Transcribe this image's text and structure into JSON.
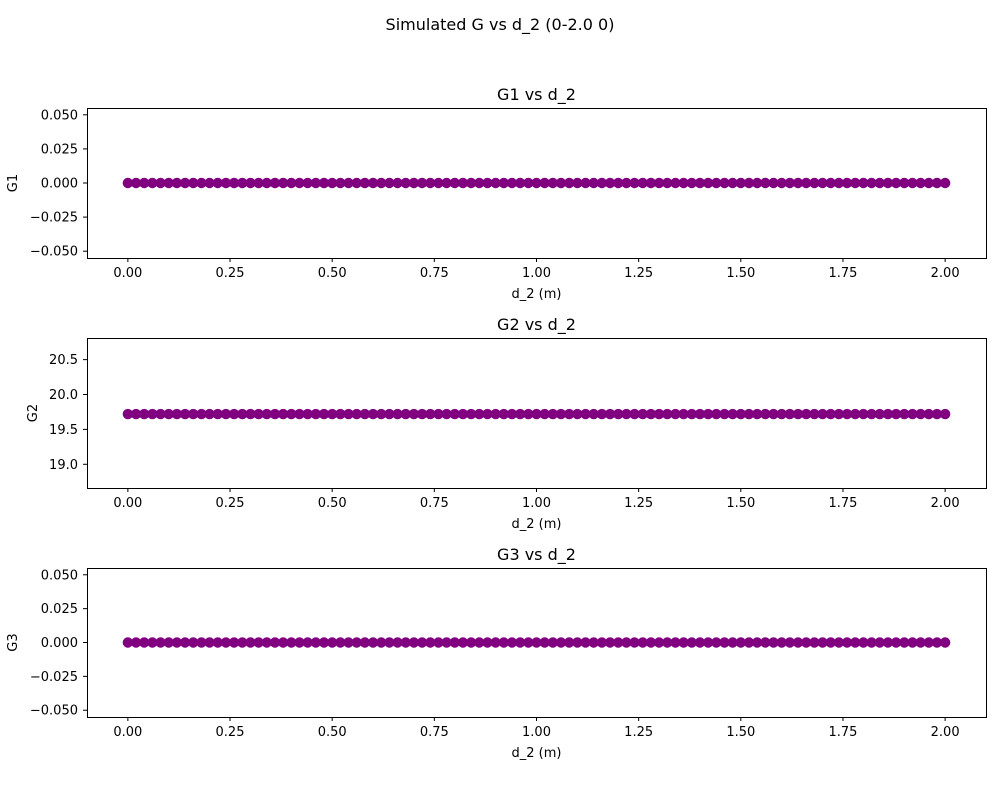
{
  "figure": {
    "title": "Simulated G vs d_2 (0-2.0 0)"
  },
  "chart_data": [
    {
      "type": "scatter",
      "title": "G1 vs d_2",
      "xlabel": "d_2 (m)",
      "ylabel": "G1",
      "xlim": [
        -0.1,
        2.1
      ],
      "ylim": [
        -0.055,
        0.055
      ],
      "xticks": [
        0.0,
        0.25,
        0.5,
        0.75,
        1.0,
        1.25,
        1.5,
        1.75,
        2.0
      ],
      "xtick_labels": [
        "0.00",
        "0.25",
        "0.50",
        "0.75",
        "1.00",
        "1.25",
        "1.50",
        "1.75",
        "2.00"
      ],
      "yticks": [
        -0.05,
        -0.025,
        0.0,
        0.025,
        0.05
      ],
      "ytick_labels": [
        "−0.050",
        "−0.025",
        "0.000",
        "0.025",
        "0.050"
      ],
      "marker_color": "#800080",
      "grid": false,
      "x": [
        0.0,
        0.02,
        0.04,
        0.06,
        0.08,
        0.1,
        0.12,
        0.14,
        0.16,
        0.18,
        0.2,
        0.22,
        0.24,
        0.26,
        0.28,
        0.3,
        0.32,
        0.34,
        0.36,
        0.38,
        0.4,
        0.42,
        0.44,
        0.46,
        0.48,
        0.5,
        0.52,
        0.54,
        0.56,
        0.58,
        0.6,
        0.62,
        0.64,
        0.66,
        0.68,
        0.7,
        0.72,
        0.74,
        0.76,
        0.78,
        0.8,
        0.82,
        0.84,
        0.86,
        0.88,
        0.9,
        0.92,
        0.94,
        0.96,
        0.98,
        1.0,
        1.02,
        1.04,
        1.06,
        1.08,
        1.1,
        1.12,
        1.14,
        1.16,
        1.18,
        1.2,
        1.22,
        1.24,
        1.26,
        1.28,
        1.3,
        1.32,
        1.34,
        1.36,
        1.38,
        1.4,
        1.42,
        1.44,
        1.46,
        1.48,
        1.5,
        1.52,
        1.54,
        1.56,
        1.58,
        1.6,
        1.62,
        1.64,
        1.66,
        1.68,
        1.7,
        1.72,
        1.74,
        1.76,
        1.78,
        1.8,
        1.82,
        1.84,
        1.86,
        1.88,
        1.9,
        1.92,
        1.94,
        1.96,
        1.98,
        2.0
      ],
      "y_constant": 0.0
    },
    {
      "type": "scatter",
      "title": "G2 vs d_2",
      "xlabel": "d_2 (m)",
      "ylabel": "G2",
      "xlim": [
        -0.1,
        2.1
      ],
      "ylim": [
        18.66,
        20.81
      ],
      "xticks": [
        0.0,
        0.25,
        0.5,
        0.75,
        1.0,
        1.25,
        1.5,
        1.75,
        2.0
      ],
      "xtick_labels": [
        "0.00",
        "0.25",
        "0.50",
        "0.75",
        "1.00",
        "1.25",
        "1.50",
        "1.75",
        "2.00"
      ],
      "yticks": [
        19.0,
        19.5,
        20.0,
        20.5
      ],
      "ytick_labels": [
        "19.0",
        "19.5",
        "20.0",
        "20.5"
      ],
      "marker_color": "#800080",
      "grid": false,
      "x": [
        0.0,
        0.02,
        0.04,
        0.06,
        0.08,
        0.1,
        0.12,
        0.14,
        0.16,
        0.18,
        0.2,
        0.22,
        0.24,
        0.26,
        0.28,
        0.3,
        0.32,
        0.34,
        0.36,
        0.38,
        0.4,
        0.42,
        0.44,
        0.46,
        0.48,
        0.5,
        0.52,
        0.54,
        0.56,
        0.58,
        0.6,
        0.62,
        0.64,
        0.66,
        0.68,
        0.7,
        0.72,
        0.74,
        0.76,
        0.78,
        0.8,
        0.82,
        0.84,
        0.86,
        0.88,
        0.9,
        0.92,
        0.94,
        0.96,
        0.98,
        1.0,
        1.02,
        1.04,
        1.06,
        1.08,
        1.1,
        1.12,
        1.14,
        1.16,
        1.18,
        1.2,
        1.22,
        1.24,
        1.26,
        1.28,
        1.3,
        1.32,
        1.34,
        1.36,
        1.38,
        1.4,
        1.42,
        1.44,
        1.46,
        1.48,
        1.5,
        1.52,
        1.54,
        1.56,
        1.58,
        1.6,
        1.62,
        1.64,
        1.66,
        1.68,
        1.7,
        1.72,
        1.74,
        1.76,
        1.78,
        1.8,
        1.82,
        1.84,
        1.86,
        1.88,
        1.9,
        1.92,
        1.94,
        1.96,
        1.98,
        2.0
      ],
      "y_constant": 19.72
    },
    {
      "type": "scatter",
      "title": "G3 vs d_2",
      "xlabel": "d_2 (m)",
      "ylabel": "G3",
      "xlim": [
        -0.1,
        2.1
      ],
      "ylim": [
        -0.055,
        0.055
      ],
      "xticks": [
        0.0,
        0.25,
        0.5,
        0.75,
        1.0,
        1.25,
        1.5,
        1.75,
        2.0
      ],
      "xtick_labels": [
        "0.00",
        "0.25",
        "0.50",
        "0.75",
        "1.00",
        "1.25",
        "1.50",
        "1.75",
        "2.00"
      ],
      "yticks": [
        -0.05,
        -0.025,
        0.0,
        0.025,
        0.05
      ],
      "ytick_labels": [
        "−0.050",
        "−0.025",
        "0.000",
        "0.025",
        "0.050"
      ],
      "marker_color": "#800080",
      "grid": false,
      "x": [
        0.0,
        0.02,
        0.04,
        0.06,
        0.08,
        0.1,
        0.12,
        0.14,
        0.16,
        0.18,
        0.2,
        0.22,
        0.24,
        0.26,
        0.28,
        0.3,
        0.32,
        0.34,
        0.36,
        0.38,
        0.4,
        0.42,
        0.44,
        0.46,
        0.48,
        0.5,
        0.52,
        0.54,
        0.56,
        0.58,
        0.6,
        0.62,
        0.64,
        0.66,
        0.68,
        0.7,
        0.72,
        0.74,
        0.76,
        0.78,
        0.8,
        0.82,
        0.84,
        0.86,
        0.88,
        0.9,
        0.92,
        0.94,
        0.96,
        0.98,
        1.0,
        1.02,
        1.04,
        1.06,
        1.08,
        1.1,
        1.12,
        1.14,
        1.16,
        1.18,
        1.2,
        1.22,
        1.24,
        1.26,
        1.28,
        1.3,
        1.32,
        1.34,
        1.36,
        1.38,
        1.4,
        1.42,
        1.44,
        1.46,
        1.48,
        1.5,
        1.52,
        1.54,
        1.56,
        1.58,
        1.6,
        1.62,
        1.64,
        1.66,
        1.68,
        1.7,
        1.72,
        1.74,
        1.76,
        1.78,
        1.8,
        1.82,
        1.84,
        1.86,
        1.88,
        1.9,
        1.92,
        1.94,
        1.96,
        1.98,
        2.0
      ],
      "y_constant": 0.0
    }
  ]
}
